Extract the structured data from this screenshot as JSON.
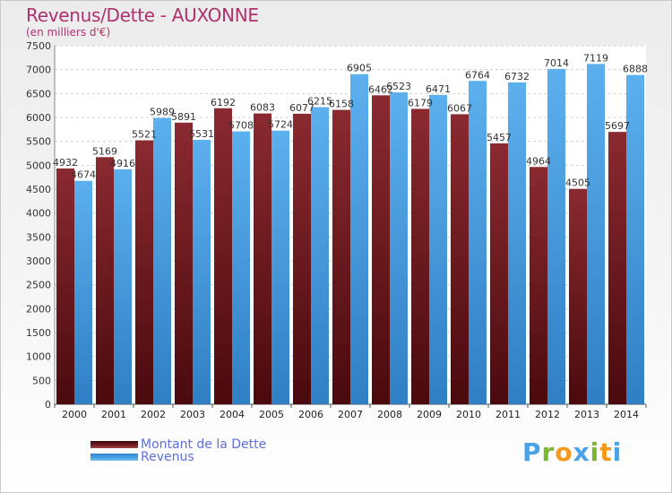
{
  "chart_data": {
    "type": "bar",
    "title": "Revenus/Dette - AUXONNE",
    "subtitle": "(en milliers d'€)",
    "categories": [
      "2000",
      "2001",
      "2002",
      "2003",
      "2004",
      "2005",
      "2006",
      "2007",
      "2008",
      "2009",
      "2010",
      "2011",
      "2012",
      "2013",
      "2014"
    ],
    "series": [
      {
        "name": "Montant de la Dette",
        "color": "#7a1e24",
        "values": [
          4932,
          5169,
          5521,
          5891,
          6192,
          6083,
          6077,
          6158,
          6462,
          6179,
          6067,
          5457,
          4964,
          4505,
          5697
        ],
        "labels": [
          "4932",
          "5169",
          "5521",
          "5891",
          "6192",
          "6083",
          "6077",
          "6158",
          "6462",
          "6179",
          "6067",
          "5457",
          "4964",
          "4505",
          "5697"
        ]
      },
      {
        "name": "Revenus",
        "color": "#4aa3e6",
        "values": [
          4674,
          4916,
          5989,
          5531,
          5708,
          5724,
          6215,
          6905,
          6523,
          6471,
          6764,
          6732,
          7014,
          7119,
          6888
        ],
        "labels": [
          "4674",
          "4916",
          "5989",
          "5531",
          "5708",
          "5724",
          "6215",
          "6905",
          "6523",
          "6471",
          "6764",
          "6732",
          "7014",
          "7119",
          "6888"
        ]
      }
    ],
    "ylim": [
      0,
      7500
    ],
    "yticks": [
      0,
      500,
      1000,
      1500,
      2000,
      2500,
      3000,
      3500,
      4000,
      4500,
      5000,
      5500,
      6000,
      6500,
      7000,
      7500
    ],
    "grid": true,
    "legend_position": "bottom-left"
  },
  "brand": "Proxiti"
}
